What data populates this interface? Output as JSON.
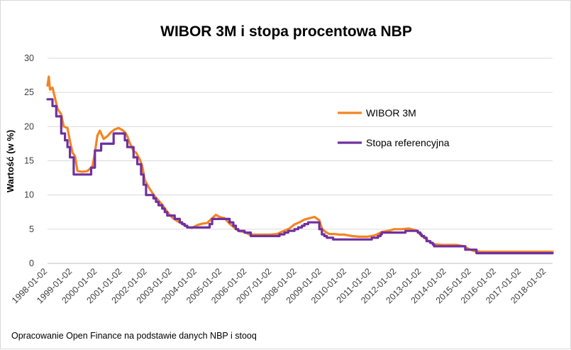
{
  "chart_data": {
    "type": "line",
    "title": "WIBOR 3M i stopa procentowa NBP",
    "ylabel": "Wartość (w %)",
    "xlabel": "",
    "ylim": [
      0,
      30
    ],
    "yticks": [
      "0",
      "5",
      "10",
      "15",
      "20",
      "25",
      "30"
    ],
    "xticks": [
      "1998-01-02",
      "1999-01-02",
      "2000-01-02",
      "2001-01-02",
      "2002-01-02",
      "2003-01-02",
      "2004-01-02",
      "2005-01-02",
      "2006-01-02",
      "2007-01-02",
      "2008-01-02",
      "2009-01-02",
      "2010-01-02",
      "2011-01-02",
      "2012-01-02",
      "2013-01-02",
      "2014-01-02",
      "2015-01-02",
      "2016-01-02",
      "2017-01-02",
      "2018-01-02"
    ],
    "grid": true,
    "legend_position": "right",
    "series": [
      {
        "name": "WIBOR 3M",
        "color": "#f28522",
        "points": [
          [
            1998.0,
            26.0
          ],
          [
            1998.05,
            27.3
          ],
          [
            1998.1,
            25.4
          ],
          [
            1998.2,
            25.7
          ],
          [
            1998.3,
            24.2
          ],
          [
            1998.4,
            22.6
          ],
          [
            1998.55,
            21.8
          ],
          [
            1998.65,
            20.0
          ],
          [
            1998.8,
            19.8
          ],
          [
            1998.9,
            17.9
          ],
          [
            1999.0,
            16.2
          ],
          [
            1999.1,
            15.7
          ],
          [
            1999.2,
            13.5
          ],
          [
            1999.4,
            13.4
          ],
          [
            1999.6,
            13.5
          ],
          [
            1999.8,
            14.2
          ],
          [
            1999.9,
            16.2
          ],
          [
            2000.0,
            18.7
          ],
          [
            2000.1,
            19.4
          ],
          [
            2000.25,
            18.2
          ],
          [
            2000.4,
            18.6
          ],
          [
            2000.55,
            19.2
          ],
          [
            2000.7,
            19.6
          ],
          [
            2000.85,
            19.8
          ],
          [
            2001.0,
            19.5
          ],
          [
            2001.1,
            19.2
          ],
          [
            2001.2,
            18.6
          ],
          [
            2001.3,
            17.6
          ],
          [
            2001.45,
            16.4
          ],
          [
            2001.55,
            16.2
          ],
          [
            2001.7,
            15.2
          ],
          [
            2001.8,
            14.2
          ],
          [
            2001.9,
            12.2
          ],
          [
            2002.0,
            11.5
          ],
          [
            2002.15,
            10.6
          ],
          [
            2002.3,
            9.8
          ],
          [
            2002.45,
            9.2
          ],
          [
            2002.6,
            8.6
          ],
          [
            2002.75,
            7.8
          ],
          [
            2002.9,
            7.1
          ],
          [
            2003.0,
            6.7
          ],
          [
            2003.2,
            6.2
          ],
          [
            2003.4,
            5.8
          ],
          [
            2003.6,
            5.3
          ],
          [
            2003.8,
            5.2
          ],
          [
            2004.0,
            5.6
          ],
          [
            2004.2,
            5.8
          ],
          [
            2004.4,
            5.9
          ],
          [
            2004.6,
            6.6
          ],
          [
            2004.75,
            7.1
          ],
          [
            2004.9,
            6.8
          ],
          [
            2005.1,
            6.6
          ],
          [
            2005.3,
            5.8
          ],
          [
            2005.5,
            5.2
          ],
          [
            2005.7,
            4.7
          ],
          [
            2005.9,
            4.6
          ],
          [
            2006.1,
            4.2
          ],
          [
            2006.4,
            4.2
          ],
          [
            2006.7,
            4.2
          ],
          [
            2006.9,
            4.2
          ],
          [
            2007.2,
            4.3
          ],
          [
            2007.45,
            4.7
          ],
          [
            2007.7,
            5.1
          ],
          [
            2007.9,
            5.7
          ],
          [
            2008.1,
            6.0
          ],
          [
            2008.3,
            6.4
          ],
          [
            2008.5,
            6.6
          ],
          [
            2008.7,
            6.8
          ],
          [
            2008.9,
            6.3
          ],
          [
            2009.0,
            5.1
          ],
          [
            2009.15,
            4.6
          ],
          [
            2009.3,
            4.3
          ],
          [
            2009.5,
            4.3
          ],
          [
            2009.7,
            4.2
          ],
          [
            2009.9,
            4.2
          ],
          [
            2010.2,
            4.0
          ],
          [
            2010.5,
            3.9
          ],
          [
            2010.8,
            3.9
          ],
          [
            2011.0,
            4.0
          ],
          [
            2011.2,
            4.2
          ],
          [
            2011.4,
            4.6
          ],
          [
            2011.7,
            4.8
          ],
          [
            2011.9,
            5.0
          ],
          [
            2012.2,
            5.0
          ],
          [
            2012.5,
            5.1
          ],
          [
            2012.8,
            4.8
          ],
          [
            2012.95,
            4.2
          ],
          [
            2013.1,
            3.8
          ],
          [
            2013.3,
            3.2
          ],
          [
            2013.5,
            2.8
          ],
          [
            2013.8,
            2.7
          ],
          [
            2014.1,
            2.7
          ],
          [
            2014.4,
            2.7
          ],
          [
            2014.7,
            2.5
          ],
          [
            2014.9,
            2.1
          ],
          [
            2015.1,
            1.8
          ],
          [
            2015.4,
            1.7
          ],
          [
            2015.7,
            1.7
          ],
          [
            2016.0,
            1.7
          ],
          [
            2016.5,
            1.7
          ],
          [
            2017.0,
            1.7
          ],
          [
            2017.5,
            1.7
          ],
          [
            2018.0,
            1.7
          ],
          [
            2018.25,
            1.7
          ]
        ]
      },
      {
        "name": "Stopa referencyjna",
        "color": "#7030a0",
        "points": [
          [
            1998.0,
            24.0
          ],
          [
            1998.2,
            24.0
          ],
          [
            1998.2,
            23.0
          ],
          [
            1998.35,
            23.0
          ],
          [
            1998.35,
            21.5
          ],
          [
            1998.55,
            21.5
          ],
          [
            1998.55,
            19.0
          ],
          [
            1998.7,
            19.0
          ],
          [
            1998.7,
            18.0
          ],
          [
            1998.8,
            18.0
          ],
          [
            1998.8,
            17.0
          ],
          [
            1998.9,
            17.0
          ],
          [
            1998.9,
            15.5
          ],
          [
            1999.05,
            15.5
          ],
          [
            1999.05,
            13.0
          ],
          [
            1999.75,
            13.0
          ],
          [
            1999.75,
            14.0
          ],
          [
            1999.9,
            14.0
          ],
          [
            1999.9,
            16.5
          ],
          [
            2000.15,
            16.5
          ],
          [
            2000.15,
            17.5
          ],
          [
            2000.65,
            17.5
          ],
          [
            2000.65,
            19.0
          ],
          [
            2001.1,
            19.0
          ],
          [
            2001.1,
            18.0
          ],
          [
            2001.2,
            18.0
          ],
          [
            2001.2,
            17.0
          ],
          [
            2001.45,
            17.0
          ],
          [
            2001.45,
            15.5
          ],
          [
            2001.6,
            15.5
          ],
          [
            2001.6,
            14.5
          ],
          [
            2001.75,
            14.5
          ],
          [
            2001.75,
            13.0
          ],
          [
            2001.85,
            13.0
          ],
          [
            2001.85,
            11.5
          ],
          [
            2001.95,
            11.5
          ],
          [
            2001.95,
            10.0
          ],
          [
            2002.25,
            10.0
          ],
          [
            2002.25,
            9.5
          ],
          [
            2002.35,
            9.5
          ],
          [
            2002.35,
            9.0
          ],
          [
            2002.45,
            9.0
          ],
          [
            2002.45,
            8.5
          ],
          [
            2002.6,
            8.5
          ],
          [
            2002.6,
            8.0
          ],
          [
            2002.7,
            8.0
          ],
          [
            2002.7,
            7.5
          ],
          [
            2002.8,
            7.5
          ],
          [
            2002.8,
            7.0
          ],
          [
            2003.1,
            7.0
          ],
          [
            2003.1,
            6.5
          ],
          [
            2003.3,
            6.5
          ],
          [
            2003.3,
            6.0
          ],
          [
            2003.4,
            6.0
          ],
          [
            2003.4,
            5.75
          ],
          [
            2003.5,
            5.75
          ],
          [
            2003.5,
            5.5
          ],
          [
            2003.6,
            5.5
          ],
          [
            2003.6,
            5.25
          ],
          [
            2004.5,
            5.25
          ],
          [
            2004.5,
            5.75
          ],
          [
            2004.6,
            5.75
          ],
          [
            2004.6,
            6.5
          ],
          [
            2005.3,
            6.5
          ],
          [
            2005.3,
            6.0
          ],
          [
            2005.45,
            6.0
          ],
          [
            2005.45,
            5.5
          ],
          [
            2005.55,
            5.5
          ],
          [
            2005.55,
            5.0
          ],
          [
            2005.65,
            5.0
          ],
          [
            2005.65,
            4.75
          ],
          [
            2005.9,
            4.75
          ],
          [
            2005.9,
            4.5
          ],
          [
            2006.15,
            4.5
          ],
          [
            2006.15,
            4.0
          ],
          [
            2007.3,
            4.0
          ],
          [
            2007.3,
            4.25
          ],
          [
            2007.5,
            4.25
          ],
          [
            2007.5,
            4.5
          ],
          [
            2007.65,
            4.5
          ],
          [
            2007.65,
            4.75
          ],
          [
            2007.9,
            4.75
          ],
          [
            2007.9,
            5.0
          ],
          [
            2008.05,
            5.0
          ],
          [
            2008.05,
            5.25
          ],
          [
            2008.2,
            5.25
          ],
          [
            2008.2,
            5.5
          ],
          [
            2008.3,
            5.5
          ],
          [
            2008.3,
            5.75
          ],
          [
            2008.45,
            5.75
          ],
          [
            2008.45,
            6.0
          ],
          [
            2008.9,
            6.0
          ],
          [
            2008.9,
            5.0
          ],
          [
            2009.0,
            5.0
          ],
          [
            2009.0,
            4.25
          ],
          [
            2009.1,
            4.25
          ],
          [
            2009.1,
            4.0
          ],
          [
            2009.2,
            4.0
          ],
          [
            2009.2,
            3.75
          ],
          [
            2009.45,
            3.75
          ],
          [
            2009.45,
            3.5
          ],
          [
            2011.0,
            3.5
          ],
          [
            2011.0,
            3.75
          ],
          [
            2011.25,
            3.75
          ],
          [
            2011.25,
            4.0
          ],
          [
            2011.35,
            4.0
          ],
          [
            2011.35,
            4.25
          ],
          [
            2011.4,
            4.25
          ],
          [
            2011.4,
            4.5
          ],
          [
            2012.35,
            4.5
          ],
          [
            2012.35,
            4.75
          ],
          [
            2012.85,
            4.75
          ],
          [
            2012.85,
            4.5
          ],
          [
            2012.95,
            4.5
          ],
          [
            2012.95,
            4.25
          ],
          [
            2013.0,
            4.25
          ],
          [
            2013.0,
            4.0
          ],
          [
            2013.1,
            4.0
          ],
          [
            2013.1,
            3.75
          ],
          [
            2013.2,
            3.75
          ],
          [
            2013.2,
            3.25
          ],
          [
            2013.35,
            3.25
          ],
          [
            2013.35,
            3.0
          ],
          [
            2013.45,
            3.0
          ],
          [
            2013.45,
            2.75
          ],
          [
            2013.5,
            2.75
          ],
          [
            2013.5,
            2.5
          ],
          [
            2014.75,
            2.5
          ],
          [
            2014.75,
            2.0
          ],
          [
            2015.2,
            2.0
          ],
          [
            2015.2,
            1.5
          ],
          [
            2018.25,
            1.5
          ]
        ]
      }
    ]
  },
  "source_note": "Opracowanie Open Finance na podstawie danych NBP i stooq"
}
